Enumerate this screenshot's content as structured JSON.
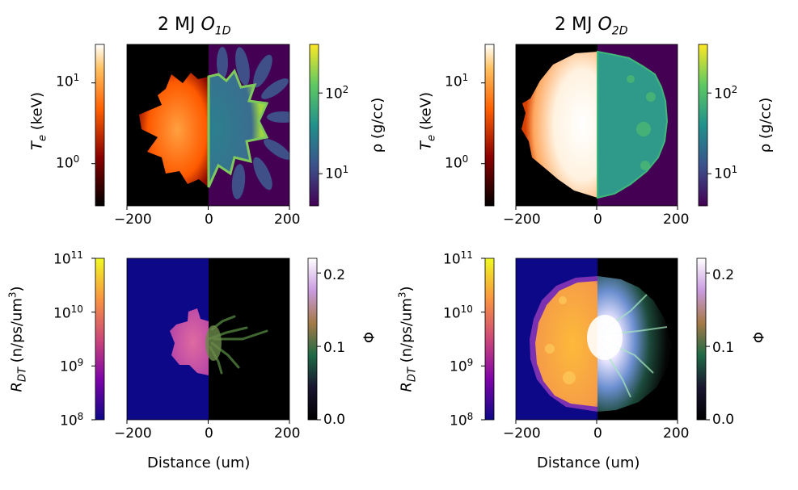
{
  "figure": {
    "panel_titles": {
      "left": {
        "prefix": "2 MJ ",
        "symbol": "O",
        "subscript": "1D"
      },
      "right": {
        "prefix": "2 MJ ",
        "symbol": "O",
        "subscript": "2D"
      }
    },
    "xlabel": "Distance (um)",
    "x_ticks": [
      "−200",
      "0",
      "200"
    ]
  },
  "chart_data": [
    {
      "type": "heatmap",
      "title": "2 MJ O1D",
      "description": "Top-left: split image, left half electron temperature, right half density",
      "x_range_um": [
        -200,
        200
      ],
      "left_colorbar": {
        "label": "T_e (keV)",
        "label_main": "T",
        "label_sub": "e",
        "label_unit": " (keV)",
        "scale": "log",
        "range": [
          0.3,
          30
        ],
        "ticks": [
          {
            "base": "10",
            "exp": "1",
            "value": 10
          },
          {
            "base": "10",
            "exp": "0",
            "value": 1
          }
        ],
        "colormap": "gist_heat"
      },
      "right_colorbar": {
        "label": "ρ (g/cc)",
        "scale": "log",
        "range": [
          4,
          400
        ],
        "ticks": [
          {
            "base": "10",
            "exp": "2",
            "value": 100
          },
          {
            "base": "10",
            "exp": "1",
            "value": 10
          }
        ],
        "colormap": "viridis"
      },
      "colors": {
        "te_bg": "#000000",
        "te_core": "#ff7a10",
        "rho_bg": "#440154",
        "rho_core": "#2d8a8b"
      }
    },
    {
      "type": "heatmap",
      "title": "2 MJ O2D",
      "description": "Top-right: split image, left half electron temperature, right half density",
      "x_range_um": [
        -200,
        200
      ],
      "left_colorbar": {
        "label": "T_e (keV)",
        "label_main": "T",
        "label_sub": "e",
        "label_unit": " (keV)",
        "scale": "log",
        "range": [
          0.3,
          30
        ],
        "ticks": [
          {
            "base": "10",
            "exp": "1",
            "value": 10
          },
          {
            "base": "10",
            "exp": "0",
            "value": 1
          }
        ],
        "colormap": "gist_heat"
      },
      "right_colorbar": {
        "label": "ρ (g/cc)",
        "scale": "log",
        "range": [
          4,
          400
        ],
        "ticks": [
          {
            "base": "10",
            "exp": "2",
            "value": 100
          },
          {
            "base": "10",
            "exp": "1",
            "value": 10
          }
        ],
        "colormap": "viridis"
      },
      "colors": {
        "te_bg": "#000000",
        "te_core": "#ffffff",
        "rho_bg": "#440154",
        "rho_core": "#2a9e8a"
      }
    },
    {
      "type": "heatmap",
      "description": "Bottom-left: split image, left half DT reaction rate, right half Phi",
      "x_range_um": [
        -200,
        200
      ],
      "xlabel": "Distance (um)",
      "left_colorbar": {
        "label": "R_DT (n/ps/um^3)",
        "label_main": "R",
        "label_sub": "DT",
        "label_unit": " (n/ps/um",
        "label_sup": "3",
        "label_close": ")",
        "scale": "log",
        "range": [
          100000000.0,
          100000000000.0
        ],
        "ticks": [
          {
            "base": "10",
            "exp": "11",
            "value": 100000000000.0
          },
          {
            "base": "10",
            "exp": "10",
            "value": 10000000000.0
          },
          {
            "base": "10",
            "exp": "9",
            "value": 1000000000.0
          },
          {
            "base": "10",
            "exp": "8",
            "value": 100000000.0
          }
        ],
        "colormap": "plasma"
      },
      "right_colorbar": {
        "label": "Φ",
        "scale": "linear",
        "range": [
          0,
          0.22
        ],
        "ticks": [
          {
            "text": "0.2",
            "value": 0.2
          },
          {
            "text": "0.1",
            "value": 0.1
          },
          {
            "text": "0.0",
            "value": 0.0
          }
        ],
        "colormap": "cubehelix"
      },
      "colors": {
        "r_bg": "#0d0887",
        "r_core": "#d35fa8",
        "phi_bg": "#000000",
        "phi_core": "#5a8a3a"
      }
    },
    {
      "type": "heatmap",
      "description": "Bottom-right: split image, left half DT reaction rate, right half Phi",
      "x_range_um": [
        -200,
        200
      ],
      "xlabel": "Distance (um)",
      "left_colorbar": {
        "label": "R_DT (n/ps/um^3)",
        "label_main": "R",
        "label_sub": "DT",
        "label_unit": " (n/ps/um",
        "label_sup": "3",
        "label_close": ")",
        "scale": "log",
        "range": [
          100000000.0,
          100000000000.0
        ],
        "ticks": [
          {
            "base": "10",
            "exp": "11",
            "value": 100000000000.0
          },
          {
            "base": "10",
            "exp": "10",
            "value": 10000000000.0
          },
          {
            "base": "10",
            "exp": "9",
            "value": 1000000000.0
          },
          {
            "base": "10",
            "exp": "8",
            "value": 100000000.0
          }
        ],
        "colormap": "plasma"
      },
      "right_colorbar": {
        "label": "Φ",
        "scale": "linear",
        "range": [
          0,
          0.22
        ],
        "ticks": [
          {
            "text": "0.2",
            "value": 0.2
          },
          {
            "text": "0.1",
            "value": 0.1
          },
          {
            "text": "0.0",
            "value": 0.0
          }
        ],
        "colormap": "cubehelix"
      },
      "colors": {
        "r_bg": "#0d0887",
        "r_core": "#f5a83a",
        "phi_bg": "#000000",
        "phi_core": "#ffffff"
      }
    }
  ]
}
